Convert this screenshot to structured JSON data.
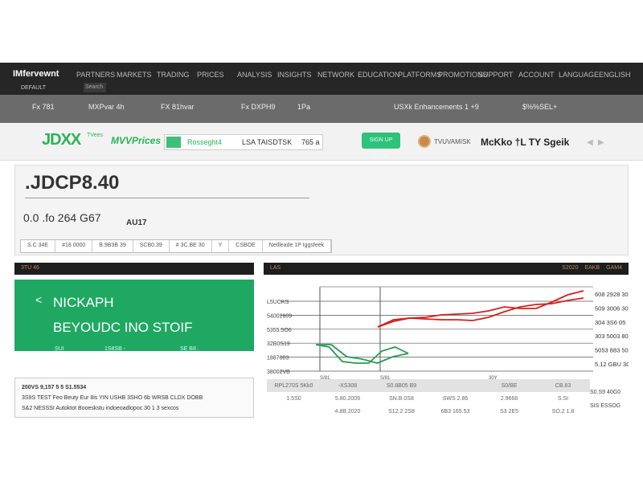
{
  "nav": {
    "brand": "IMfervewnt",
    "items": [
      "PARTNERS",
      "MARKETS",
      "TRADING",
      "PRICES",
      "ANALYSIS",
      "INSIGHTS",
      "NETWORK",
      "EDUCATION",
      "PLATFORMS",
      "PROMOTIONS",
      "SUPPORT",
      "ACCOUNT",
      "LANGUAGE",
      "ENGLISH"
    ],
    "sub_label": "DEFAULT",
    "sub_box": "Search"
  },
  "ticker": [
    "Fx 781",
    "MXPvar 4h",
    "FX 81hvar",
    "Fx DXPH9",
    "1Pa",
    "USXk Enhancements 1 +9",
    "$%%SEL+"
  ],
  "header": {
    "logo": "JDXX",
    "logo_sub": "TVees",
    "logo2": "MVVPrices",
    "search_label": "Rosseght4",
    "search_value": "LSA TAISDTSK",
    "search_value2": "765 a",
    "green_button": "SIGN UP FREE",
    "badge_label": "TVUVAMISK",
    "big_text": "McKko  †L TY Sgeik"
  },
  "panel": {
    "title": ".JDCP8.40",
    "subtitle": "0.0 .fo 264 G67",
    "sub_small": "AU17",
    "tabs": [
      "S.C 34E",
      "#18 0000",
      "B.9B3B 39",
      "SCB0.39",
      "# 3C.BE 30",
      "Y",
      "CSBOE",
      "Netlleade 1P Iggsfeek"
    ]
  },
  "left": {
    "header": "3TU 46",
    "back": "<",
    "title1": "NICKAPH",
    "title2": "BEYOUDC INO STOIF",
    "links": [
      "SUI",
      "1S8SB -",
      "SE B8 ."
    ],
    "lines": [
      "200VS 9,157 5 5 S1.5534",
      "3S9S TEST Feo Beuty Eur 8is YIN USHB 3SHO 6b WRSB CLDX DOBB",
      "S&2 NESSSI Autoktot Booeskstu indoeoadlopoc 30 1 3 sexcos"
    ]
  },
  "right": {
    "header": "LAS",
    "header_right": [
      "S2020",
      "EAKB",
      "GAM4"
    ],
    "chart_data": {
      "type": "line",
      "y_ticks_left": [
        "L5UCKS",
        "54002809",
        "5355.5O6",
        "32B0S19",
        "1887003",
        "38002VB"
      ],
      "y_ticks_right": [
        "608 2928 30",
        "509 3006 30",
        "304 3S6 05",
        "303 5003 80",
        "5053 883 50",
        "5.12 GBU 30"
      ],
      "x_ticks": [
        "S/81",
        "S/81",
        "30Y"
      ],
      "series": [
        {
          "color": "#d42020",
          "values": [
            0.55,
            0.62,
            0.66,
            0.67,
            0.7,
            0.71,
            0.72,
            0.75,
            0.8,
            0.78,
            0.78,
            0.86,
            0.95,
            1.0
          ]
        },
        {
          "color": "#d42020",
          "values": [
            0.55,
            0.64,
            0.66,
            0.65,
            0.64,
            0.64,
            0.63,
            0.67,
            0.74,
            0.8,
            0.83,
            0.84,
            0.88,
            0.91
          ]
        },
        {
          "color": "#2a9a55",
          "values": [
            0.33,
            0.3,
            0.12,
            0.1,
            0.1,
            0.25,
            0.3,
            0.22
          ]
        },
        {
          "color": "#2a9a55",
          "values": [
            0.33,
            0.33,
            0.18,
            0.15,
            0.1,
            0.18,
            0.22
          ]
        }
      ]
    },
    "table": {
      "head": [
        "RPL270S 5Kk0",
        "-XS308",
        "S0.8B05 B9",
        "",
        "S0/BE",
        "CB.83"
      ],
      "rows": [
        [
          "1.5S0",
          "5.80.2009",
          "SN.B.0S8",
          "SWS 2.86",
          "2.9668",
          "S.SI"
        ],
        [
          "",
          "4.8B.2020",
          "S12.2 2S8",
          "6B3 165.53",
          "S3 2E5",
          "SO.2 1.8"
        ]
      ],
      "side": [
        "S0.S9 40G0",
        "SIS ESSOG"
      ]
    }
  }
}
